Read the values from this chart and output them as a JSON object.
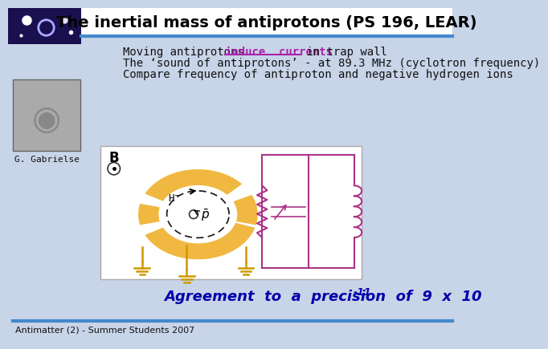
{
  "title": "The inertial mass of antiprotons (PS 196, LEAR)",
  "bg_color": "#c8d4e8",
  "title_bg": "#ffffff",
  "line1_normal": "Moving antiprotons ",
  "line1_highlight": "induce  currents",
  "line1_end": " in trap wall",
  "line2": "The ‘sound of antiprotons’ - at 89.3 MHz (cyclotron frequency)",
  "line3": "Compare frequency of antiproton and negative hydrogen ions",
  "agreement_text": "Agreement  to  a  precision  of  9  x  10",
  "agreement_exp": "-11",
  "footer": "Antimatter (2) - Summer Students 2007",
  "name_label": "G. Gabrielse",
  "highlight_color": "#aa22aa",
  "text_color": "#0000aa",
  "body_text_color": "#111111",
  "diagram_bg": "#ffffff",
  "trap_color": "#f0b840",
  "diagram_border": "#aaaaaa",
  "circuit_color": "#aa3388",
  "ground_color": "#cc9900",
  "blue_line_color": "#4488cc",
  "title_color": "#000000"
}
